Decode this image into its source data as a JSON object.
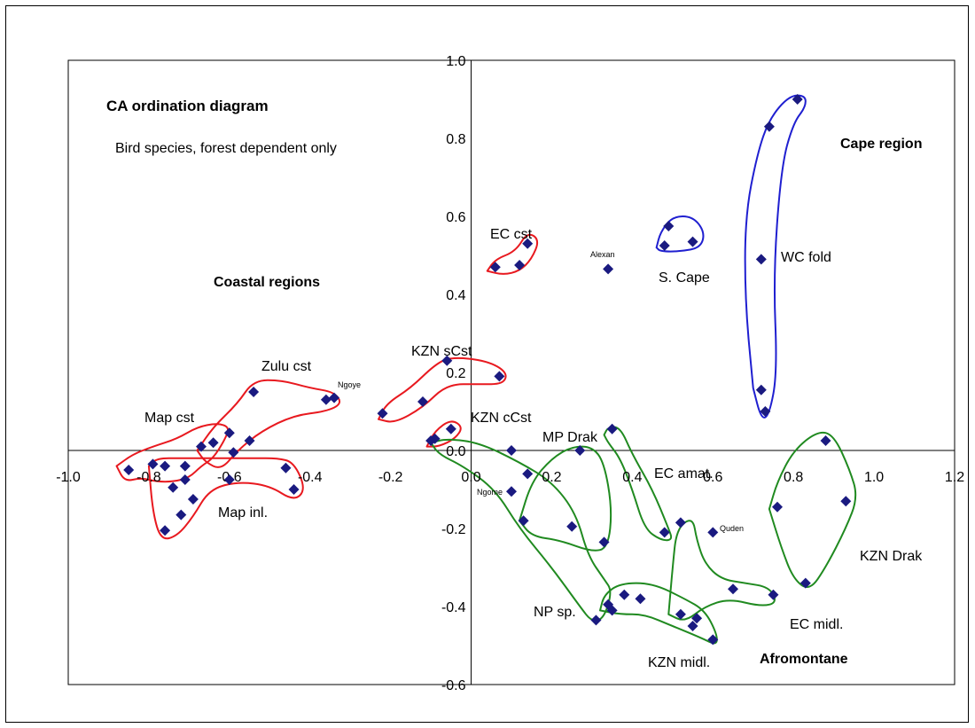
{
  "chart_data": {
    "type": "scatter",
    "title": "CA ordination  diagram",
    "subtitle": "Bird species, forest dependent only",
    "xlim": [
      -1.0,
      1.2
    ],
    "ylim": [
      -0.6,
      1.0
    ],
    "xticks": [
      "-1.0",
      "-0.8",
      "-0.6",
      "-0.4",
      "-0.2",
      "0.0",
      "0.2",
      "0.4",
      "0.6",
      "0.8",
      "1.0",
      "1.2"
    ],
    "yticks": [
      "-0.6",
      "-0.4",
      "-0.2",
      "0.0",
      "0.2",
      "0.4",
      "0.6",
      "0.8",
      "1.0"
    ],
    "xtick_values": [
      -1.0,
      -0.8,
      -0.6,
      -0.4,
      -0.2,
      0.0,
      0.2,
      0.4,
      0.6,
      0.8,
      1.0,
      1.2
    ],
    "ytick_values": [
      -0.6,
      -0.4,
      -0.2,
      0.0,
      0.2,
      0.4,
      0.6,
      0.8,
      1.0
    ],
    "grid": false,
    "marker_color": "#1a1a80",
    "points": [
      [
        -0.85,
        -0.05
      ],
      [
        -0.79,
        -0.035
      ],
      [
        -0.76,
        -0.04
      ],
      [
        -0.71,
        -0.04
      ],
      [
        -0.74,
        -0.095
      ],
      [
        -0.71,
        -0.075
      ],
      [
        -0.69,
        -0.125
      ],
      [
        -0.72,
        -0.165
      ],
      [
        -0.76,
        -0.205
      ],
      [
        -0.67,
        0.01
      ],
      [
        -0.64,
        0.02
      ],
      [
        -0.6,
        0.045
      ],
      [
        -0.59,
        -0.005
      ],
      [
        -0.6,
        -0.075
      ],
      [
        -0.55,
        0.025
      ],
      [
        -0.54,
        0.15
      ],
      [
        -0.46,
        -0.045
      ],
      [
        -0.44,
        -0.1
      ],
      [
        -0.36,
        0.13
      ],
      [
        -0.34,
        0.135
      ],
      [
        -0.22,
        0.095
      ],
      [
        -0.12,
        0.125
      ],
      [
        -0.1,
        0.025
      ],
      [
        -0.09,
        0.03
      ],
      [
        -0.06,
        0.23
      ],
      [
        -0.05,
        0.055
      ],
      [
        0.07,
        0.19
      ],
      [
        0.06,
        0.47
      ],
      [
        0.12,
        0.475
      ],
      [
        0.14,
        0.53
      ],
      [
        0.34,
        0.465
      ],
      [
        0.48,
        0.525
      ],
      [
        0.49,
        0.575
      ],
      [
        0.55,
        0.535
      ],
      [
        0.72,
        0.49
      ],
      [
        0.74,
        0.83
      ],
      [
        0.81,
        0.9
      ],
      [
        0.72,
        0.155
      ],
      [
        0.73,
        0.1
      ],
      [
        0.1,
        0.0
      ],
      [
        0.14,
        -0.06
      ],
      [
        0.27,
        0.0
      ],
      [
        0.1,
        -0.105
      ],
      [
        0.13,
        -0.18
      ],
      [
        0.25,
        -0.195
      ],
      [
        0.33,
        -0.235
      ],
      [
        0.31,
        -0.435
      ],
      [
        0.35,
        0.055
      ],
      [
        0.34,
        -0.395
      ],
      [
        0.35,
        -0.41
      ],
      [
        0.38,
        -0.37
      ],
      [
        0.42,
        -0.38
      ],
      [
        0.48,
        -0.21
      ],
      [
        0.52,
        -0.185
      ],
      [
        0.6,
        -0.21
      ],
      [
        0.52,
        -0.42
      ],
      [
        0.56,
        -0.43
      ],
      [
        0.55,
        -0.45
      ],
      [
        0.6,
        -0.485
      ],
      [
        0.65,
        -0.355
      ],
      [
        0.75,
        -0.37
      ],
      [
        0.76,
        -0.145
      ],
      [
        0.83,
        -0.34
      ],
      [
        0.88,
        0.025
      ],
      [
        0.93,
        -0.13
      ]
    ],
    "group_outlines": [
      {
        "region": "coastal",
        "color": "#e8191f",
        "pts": [
          [
            -0.88,
            -0.04
          ],
          [
            -0.86,
            -0.08
          ],
          [
            -0.82,
            -0.07
          ],
          [
            -0.78,
            -0.08
          ],
          [
            -0.74,
            -0.08
          ],
          [
            -0.7,
            -0.07
          ],
          [
            -0.67,
            -0.04
          ],
          [
            -0.64,
            -0.02
          ],
          [
            -0.61,
            0.03
          ],
          [
            -0.6,
            0.06
          ],
          [
            -0.63,
            0.07
          ],
          [
            -0.68,
            0.06
          ],
          [
            -0.73,
            0.03
          ],
          [
            -0.79,
            0.01
          ],
          [
            -0.84,
            -0.01
          ],
          [
            -0.88,
            -0.04
          ]
        ]
      },
      {
        "region": "coastal",
        "color": "#e8191f",
        "pts": [
          [
            -0.8,
            -0.04
          ],
          [
            -0.79,
            -0.16
          ],
          [
            -0.77,
            -0.23
          ],
          [
            -0.73,
            -0.22
          ],
          [
            -0.69,
            -0.17
          ],
          [
            -0.65,
            -0.1
          ],
          [
            -0.58,
            -0.08
          ],
          [
            -0.5,
            -0.09
          ],
          [
            -0.44,
            -0.13
          ],
          [
            -0.41,
            -0.1
          ],
          [
            -0.44,
            -0.03
          ],
          [
            -0.48,
            -0.02
          ],
          [
            -0.54,
            -0.02
          ],
          [
            -0.6,
            -0.02
          ],
          [
            -0.66,
            -0.02
          ],
          [
            -0.72,
            -0.02
          ],
          [
            -0.78,
            -0.02
          ],
          [
            -0.8,
            -0.04
          ]
        ]
      },
      {
        "region": "coastal",
        "color": "#e8191f",
        "pts": [
          [
            -0.68,
            0.0
          ],
          [
            -0.64,
            0.06
          ],
          [
            -0.58,
            0.12
          ],
          [
            -0.54,
            0.18
          ],
          [
            -0.47,
            0.18
          ],
          [
            -0.4,
            0.16
          ],
          [
            -0.34,
            0.15
          ],
          [
            -0.32,
            0.12
          ],
          [
            -0.36,
            0.1
          ],
          [
            -0.44,
            0.09
          ],
          [
            -0.52,
            0.05
          ],
          [
            -0.58,
            0.0
          ],
          [
            -0.62,
            -0.05
          ],
          [
            -0.66,
            -0.03
          ],
          [
            -0.68,
            0.0
          ]
        ]
      },
      {
        "region": "coastal",
        "color": "#e8191f",
        "pts": [
          [
            -0.23,
            0.08
          ],
          [
            -0.21,
            0.12
          ],
          [
            -0.15,
            0.16
          ],
          [
            -0.09,
            0.22
          ],
          [
            -0.05,
            0.24
          ],
          [
            0.04,
            0.23
          ],
          [
            0.09,
            0.2
          ],
          [
            0.08,
            0.17
          ],
          [
            0.02,
            0.17
          ],
          [
            -0.06,
            0.17
          ],
          [
            -0.12,
            0.11
          ],
          [
            -0.19,
            0.07
          ],
          [
            -0.23,
            0.08
          ]
        ]
      },
      {
        "region": "coastal",
        "color": "#e8191f",
        "pts": [
          [
            -0.11,
            0.01
          ],
          [
            -0.09,
            0.05
          ],
          [
            -0.05,
            0.08
          ],
          [
            -0.02,
            0.06
          ],
          [
            -0.04,
            0.03
          ],
          [
            -0.08,
            0.01
          ],
          [
            -0.11,
            0.01
          ]
        ]
      },
      {
        "region": "coastal",
        "color": "#e8191f",
        "pts": [
          [
            0.04,
            0.46
          ],
          [
            0.06,
            0.49
          ],
          [
            0.11,
            0.51
          ],
          [
            0.14,
            0.56
          ],
          [
            0.17,
            0.54
          ],
          [
            0.15,
            0.49
          ],
          [
            0.12,
            0.46
          ],
          [
            0.08,
            0.45
          ],
          [
            0.04,
            0.46
          ]
        ]
      },
      {
        "region": "cape",
        "color": "#1f1fd0",
        "pts": [
          [
            0.46,
            0.52
          ],
          [
            0.47,
            0.56
          ],
          [
            0.5,
            0.6
          ],
          [
            0.55,
            0.6
          ],
          [
            0.58,
            0.56
          ],
          [
            0.57,
            0.52
          ],
          [
            0.52,
            0.51
          ],
          [
            0.47,
            0.51
          ],
          [
            0.46,
            0.52
          ]
        ]
      },
      {
        "region": "cape",
        "color": "#1f1fd0",
        "pts": [
          [
            0.7,
            0.16
          ],
          [
            0.68,
            0.38
          ],
          [
            0.68,
            0.6
          ],
          [
            0.71,
            0.76
          ],
          [
            0.74,
            0.85
          ],
          [
            0.79,
            0.91
          ],
          [
            0.83,
            0.91
          ],
          [
            0.83,
            0.88
          ],
          [
            0.8,
            0.84
          ],
          [
            0.77,
            0.73
          ],
          [
            0.75,
            0.45
          ],
          [
            0.76,
            0.2
          ],
          [
            0.74,
            0.09
          ],
          [
            0.72,
            0.08
          ],
          [
            0.7,
            0.16
          ]
        ]
      },
      {
        "region": "afromontane",
        "color": "#208a20",
        "pts": [
          [
            -0.1,
            0.02
          ],
          [
            -0.06,
            0.03
          ],
          [
            0.02,
            0.02
          ],
          [
            0.12,
            -0.03
          ],
          [
            0.2,
            -0.08
          ],
          [
            0.26,
            -0.16
          ],
          [
            0.29,
            -0.27
          ],
          [
            0.33,
            -0.33
          ],
          [
            0.35,
            -0.36
          ],
          [
            0.33,
            -0.43
          ],
          [
            0.3,
            -0.44
          ],
          [
            0.27,
            -0.4
          ],
          [
            0.2,
            -0.3
          ],
          [
            0.12,
            -0.2
          ],
          [
            0.06,
            -0.1
          ],
          [
            -0.02,
            -0.04
          ],
          [
            -0.08,
            -0.01
          ],
          [
            -0.1,
            0.02
          ]
        ]
      },
      {
        "region": "afromontane",
        "color": "#208a20",
        "pts": [
          [
            0.12,
            -0.18
          ],
          [
            0.15,
            -0.22
          ],
          [
            0.22,
            -0.23
          ],
          [
            0.3,
            -0.26
          ],
          [
            0.34,
            -0.25
          ],
          [
            0.35,
            -0.15
          ],
          [
            0.33,
            -0.03
          ],
          [
            0.3,
            0.01
          ],
          [
            0.25,
            0.01
          ],
          [
            0.2,
            -0.02
          ],
          [
            0.15,
            -0.08
          ],
          [
            0.12,
            -0.18
          ]
        ]
      },
      {
        "region": "afromontane",
        "color": "#208a20",
        "pts": [
          [
            0.33,
            0.04
          ],
          [
            0.34,
            0.06
          ],
          [
            0.37,
            0.06
          ],
          [
            0.4,
            -0.01
          ],
          [
            0.45,
            -0.1
          ],
          [
            0.49,
            -0.2
          ],
          [
            0.5,
            -0.23
          ],
          [
            0.47,
            -0.23
          ],
          [
            0.43,
            -0.2
          ],
          [
            0.4,
            -0.1
          ],
          [
            0.37,
            -0.02
          ],
          [
            0.34,
            0.02
          ],
          [
            0.33,
            0.04
          ]
        ]
      },
      {
        "region": "afromontane",
        "color": "#208a20",
        "pts": [
          [
            0.32,
            -0.41
          ],
          [
            0.33,
            -0.37
          ],
          [
            0.37,
            -0.34
          ],
          [
            0.45,
            -0.34
          ],
          [
            0.53,
            -0.38
          ],
          [
            0.58,
            -0.41
          ],
          [
            0.61,
            -0.47
          ],
          [
            0.61,
            -0.5
          ],
          [
            0.57,
            -0.48
          ],
          [
            0.5,
            -0.45
          ],
          [
            0.43,
            -0.42
          ],
          [
            0.37,
            -0.42
          ],
          [
            0.32,
            -0.41
          ]
        ]
      },
      {
        "region": "afromontane",
        "color": "#208a20",
        "pts": [
          [
            0.49,
            -0.42
          ],
          [
            0.5,
            -0.3
          ],
          [
            0.51,
            -0.2
          ],
          [
            0.55,
            -0.17
          ],
          [
            0.56,
            -0.23
          ],
          [
            0.58,
            -0.29
          ],
          [
            0.62,
            -0.33
          ],
          [
            0.68,
            -0.34
          ],
          [
            0.74,
            -0.35
          ],
          [
            0.76,
            -0.39
          ],
          [
            0.72,
            -0.4
          ],
          [
            0.64,
            -0.38
          ],
          [
            0.58,
            -0.4
          ],
          [
            0.53,
            -0.44
          ],
          [
            0.49,
            -0.42
          ]
        ]
      },
      {
        "region": "afromontane",
        "color": "#208a20",
        "pts": [
          [
            0.74,
            -0.15
          ],
          [
            0.76,
            -0.08
          ],
          [
            0.8,
            0.0
          ],
          [
            0.86,
            0.05
          ],
          [
            0.9,
            0.04
          ],
          [
            0.94,
            -0.05
          ],
          [
            0.96,
            -0.12
          ],
          [
            0.93,
            -0.2
          ],
          [
            0.88,
            -0.3
          ],
          [
            0.84,
            -0.36
          ],
          [
            0.8,
            -0.33
          ],
          [
            0.77,
            -0.25
          ],
          [
            0.74,
            -0.15
          ]
        ]
      }
    ]
  },
  "labels": {
    "title": "CA ordination  diagram",
    "subtitle": "Bird species, forest dependent only",
    "coastal": "Coastal regions",
    "cape": "Cape region",
    "afromontane": "Afromontane",
    "ec_cst": "EC cst",
    "alexan": "Alexan",
    "s_cape": "S. Cape",
    "wc_fold": "WC fold",
    "zulu_cst": "Zulu cst",
    "ngoye": "Ngoye",
    "kzn_scst": "KZN sCst",
    "map_cst": "Map cst",
    "kzn_ccst": "KZN cCst",
    "mp_drak": "MP Drak",
    "ec_amat": "EC amat.",
    "ngome": "Ngome",
    "quden": "Quden",
    "map_inl": "Map inl.",
    "np_sp": "NP sp.",
    "kzn_drak": "KZN Drak",
    "ec_midl": "EC midl.",
    "kzn_midl": "KZN midl."
  }
}
